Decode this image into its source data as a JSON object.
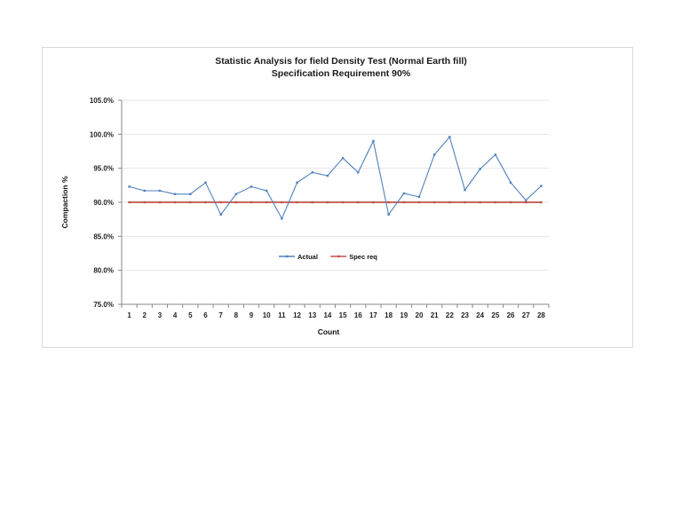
{
  "chart_data": {
    "type": "line",
    "title": "Statistic Analysis for field Density Test (Normal Earth fill)",
    "subtitle": "Specification Requirement 90%",
    "xlabel": "Count",
    "ylabel": "Compaction %",
    "ylim": [
      75,
      105
    ],
    "yticks": [
      "75.0%",
      "80.0%",
      "85.0%",
      "90.0%",
      "95.0%",
      "100.0%",
      "105.0%"
    ],
    "grid": true,
    "legend_position": "inside-center",
    "categories": [
      1,
      2,
      3,
      4,
      5,
      6,
      7,
      8,
      9,
      10,
      11,
      12,
      13,
      14,
      15,
      16,
      17,
      18,
      19,
      20,
      21,
      22,
      23,
      24,
      25,
      26,
      27,
      28
    ],
    "series": [
      {
        "name": "Actual",
        "color": "#4f81bd",
        "values": [
          92.3,
          91.7,
          91.7,
          91.2,
          91.2,
          92.9,
          88.2,
          91.2,
          92.3,
          91.7,
          87.6,
          92.9,
          94.4,
          93.9,
          96.5,
          94.4,
          99.0,
          88.2,
          91.3,
          90.8,
          97.0,
          99.6,
          91.8,
          94.9,
          97.0,
          92.9,
          90.3,
          92.4
        ]
      },
      {
        "name": "Spec req",
        "color": "#c0504d",
        "values": [
          90,
          90,
          90,
          90,
          90,
          90,
          90,
          90,
          90,
          90,
          90,
          90,
          90,
          90,
          90,
          90,
          90,
          90,
          90,
          90,
          90,
          90,
          90,
          90,
          90,
          90,
          90,
          90
        ]
      }
    ]
  }
}
